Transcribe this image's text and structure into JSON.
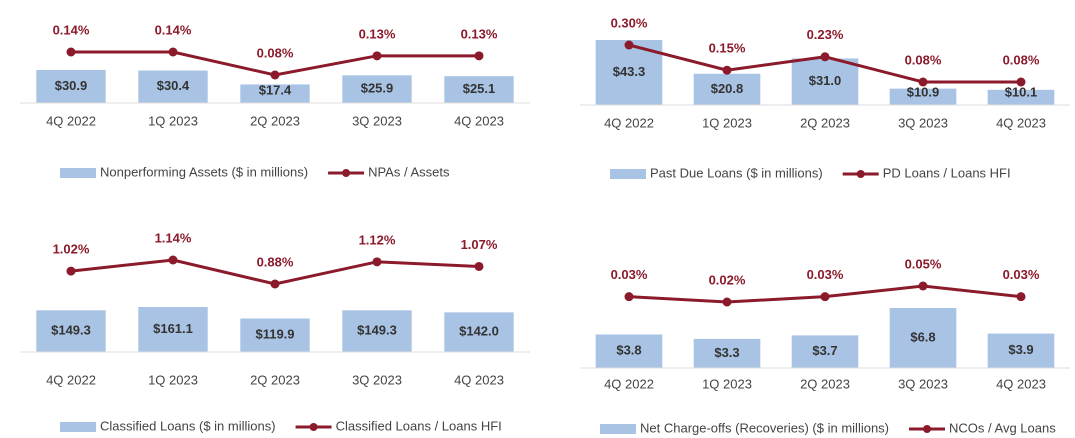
{
  "chart_data": [
    {
      "type": "combo",
      "categories": [
        "4Q 2022",
        "1Q 2023",
        "2Q 2023",
        "3Q 2023",
        "4Q 2023"
      ],
      "series": [
        {
          "name": "Nonperforming Assets ($ in millions)",
          "type": "bar",
          "color": "#a9c3e4",
          "values": [
            30.9,
            30.4,
            17.4,
            25.9,
            25.1
          ],
          "value_labels": [
            "$30.9",
            "$30.4",
            "$17.4",
            "$25.9",
            "$25.1"
          ]
        },
        {
          "name": "NPAs / Assets",
          "type": "line",
          "axis": "y2",
          "color": "#8b1a2b",
          "values": [
            0.14,
            0.14,
            0.08,
            0.13,
            0.13
          ],
          "value_labels": [
            "0.14%",
            "0.14%",
            "0.08%",
            "0.13%",
            "0.13%"
          ]
        }
      ]
    },
    {
      "type": "combo",
      "categories": [
        "4Q 2022",
        "1Q 2023",
        "2Q 2023",
        "3Q 2023",
        "4Q 2023"
      ],
      "series": [
        {
          "name": "Past Due Loans ($ in millions)",
          "type": "bar",
          "color": "#a9c3e4",
          "values": [
            43.3,
            20.8,
            31.0,
            10.9,
            10.1
          ],
          "value_labels": [
            "$43.3",
            "$20.8",
            "$31.0",
            "$10.9",
            "$10.1"
          ]
        },
        {
          "name": "PD Loans / Loans HFI",
          "type": "line",
          "axis": "y2",
          "color": "#8b1a2b",
          "values": [
            0.3,
            0.15,
            0.23,
            0.08,
            0.08
          ],
          "value_labels": [
            "0.30%",
            "0.15%",
            "0.23%",
            "0.08%",
            "0.08%"
          ]
        }
      ]
    },
    {
      "type": "combo",
      "categories": [
        "4Q 2022",
        "1Q 2023",
        "2Q 2023",
        "3Q 2023",
        "4Q 2023"
      ],
      "series": [
        {
          "name": "Classified Loans ($ in millions)",
          "type": "bar",
          "color": "#a9c3e4",
          "values": [
            149.3,
            161.1,
            119.9,
            149.3,
            142.0
          ],
          "value_labels": [
            "$149.3",
            "$161.1",
            "$119.9",
            "$149.3",
            "$142.0"
          ]
        },
        {
          "name": "Classified Loans / Loans HFI",
          "type": "line",
          "axis": "y2",
          "color": "#8b1a2b",
          "values": [
            1.02,
            1.14,
            0.88,
            1.12,
            1.07
          ],
          "value_labels": [
            "1.02%",
            "1.14%",
            "0.88%",
            "1.12%",
            "1.07%"
          ]
        }
      ]
    },
    {
      "type": "combo",
      "categories": [
        "4Q 2022",
        "1Q 2023",
        "2Q 2023",
        "3Q 2023",
        "4Q 2023"
      ],
      "series": [
        {
          "name": "Net Charge-offs (Recoveries) ($ in millions)",
          "type": "bar",
          "color": "#a9c3e4",
          "values": [
            3.8,
            3.3,
            3.7,
            6.8,
            3.9
          ],
          "value_labels": [
            "$3.8",
            "$3.3",
            "$3.7",
            "$6.8",
            "$3.9"
          ]
        },
        {
          "name": "NCOs / Avg Loans",
          "type": "line",
          "axis": "y2",
          "color": "#8b1a2b",
          "values": [
            0.03,
            0.02,
            0.03,
            0.05,
            0.03
          ],
          "value_labels": [
            "0.03%",
            "0.02%",
            "0.03%",
            "0.05%",
            "0.03%"
          ]
        }
      ]
    }
  ]
}
